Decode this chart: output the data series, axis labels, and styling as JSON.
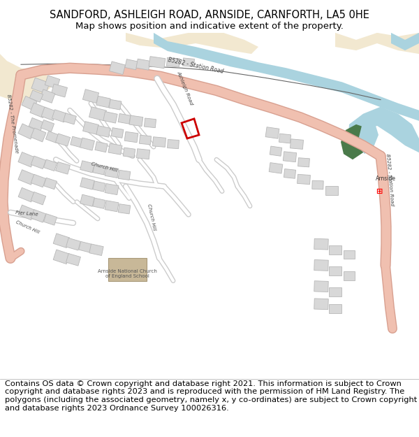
{
  "title_line1": "SANDFORD, ASHLEIGH ROAD, ARNSIDE, CARNFORTH, LA5 0HE",
  "title_line2": "Map shows position and indicative extent of the property.",
  "footer_text": "Contains OS data © Crown copyright and database right 2021. This information is subject to Crown copyright and database rights 2023 and is reproduced with the permission of HM Land Registry. The polygons (including the associated geometry, namely x, y co-ordinates) are subject to Crown copyright and database rights 2023 Ordnance Survey 100026316.",
  "bg_color": "#ffffff",
  "map_bg": "#f0efeb",
  "water_color": "#aad3df",
  "sand_color": "#f2e8d0",
  "road_main_color": "#f0c0b0",
  "road_main_edge": "#d8a090",
  "road_minor_color": "#ffffff",
  "building_color": "#d8d8d8",
  "building_edge": "#b8b8b8",
  "green_color": "#4a7a4a",
  "plot_color": "#cc0000",
  "title_fontsize": 10.5,
  "subtitle_fontsize": 9.5,
  "footer_fontsize": 8.2
}
